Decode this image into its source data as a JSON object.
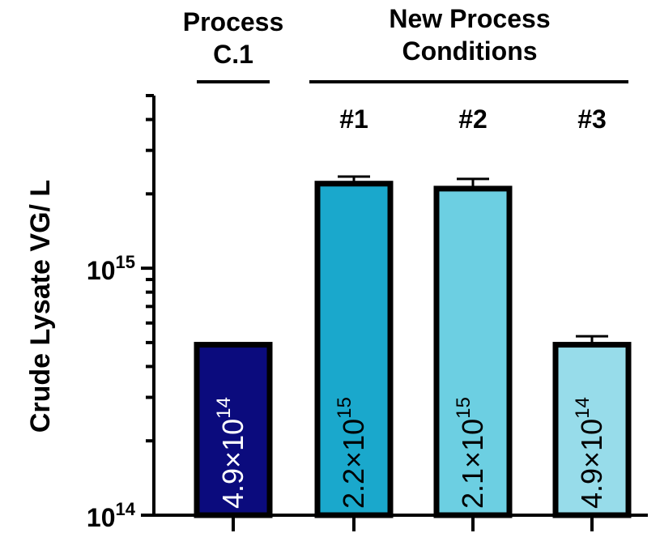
{
  "chart_data": {
    "type": "bar",
    "ylabel": "Crude Lysate VG/ L",
    "yscale": "log",
    "ylim": [
      100000000000000.0,
      5000000000000000.0
    ],
    "y_ticks": [
      {
        "value": 100000000000000.0,
        "base": "10",
        "exp": "14"
      },
      {
        "value": 1000000000000000.0,
        "base": "10",
        "exp": "15"
      }
    ],
    "groups": [
      {
        "label_lines": [
          "Process",
          "C.1"
        ]
      },
      {
        "label_lines": [
          "New Process",
          "Conditions"
        ]
      }
    ],
    "categories": [
      "",
      "#1",
      "#2",
      "#3"
    ],
    "values": [
      490000000000000.0,
      2200000000000000.0,
      2100000000000000.0,
      490000000000000.0
    ],
    "error_upper": [
      495000000000000.0,
      2350000000000000.0,
      2300000000000000.0,
      530000000000000.0
    ],
    "data_labels": [
      {
        "mantissa": "4.9×10",
        "exp": "14"
      },
      {
        "mantissa": "2.2×10",
        "exp": "15"
      },
      {
        "mantissa": "2.1×10",
        "exp": "15"
      },
      {
        "mantissa": "4.9×10",
        "exp": "14"
      }
    ],
    "colors": [
      "#0b0b7d",
      "#1aa8cc",
      "#6ccfe2",
      "#97dcea"
    ],
    "label_colors": [
      "#ffffff",
      "#000000",
      "#000000",
      "#000000"
    ],
    "grid": false,
    "legend": "none"
  }
}
